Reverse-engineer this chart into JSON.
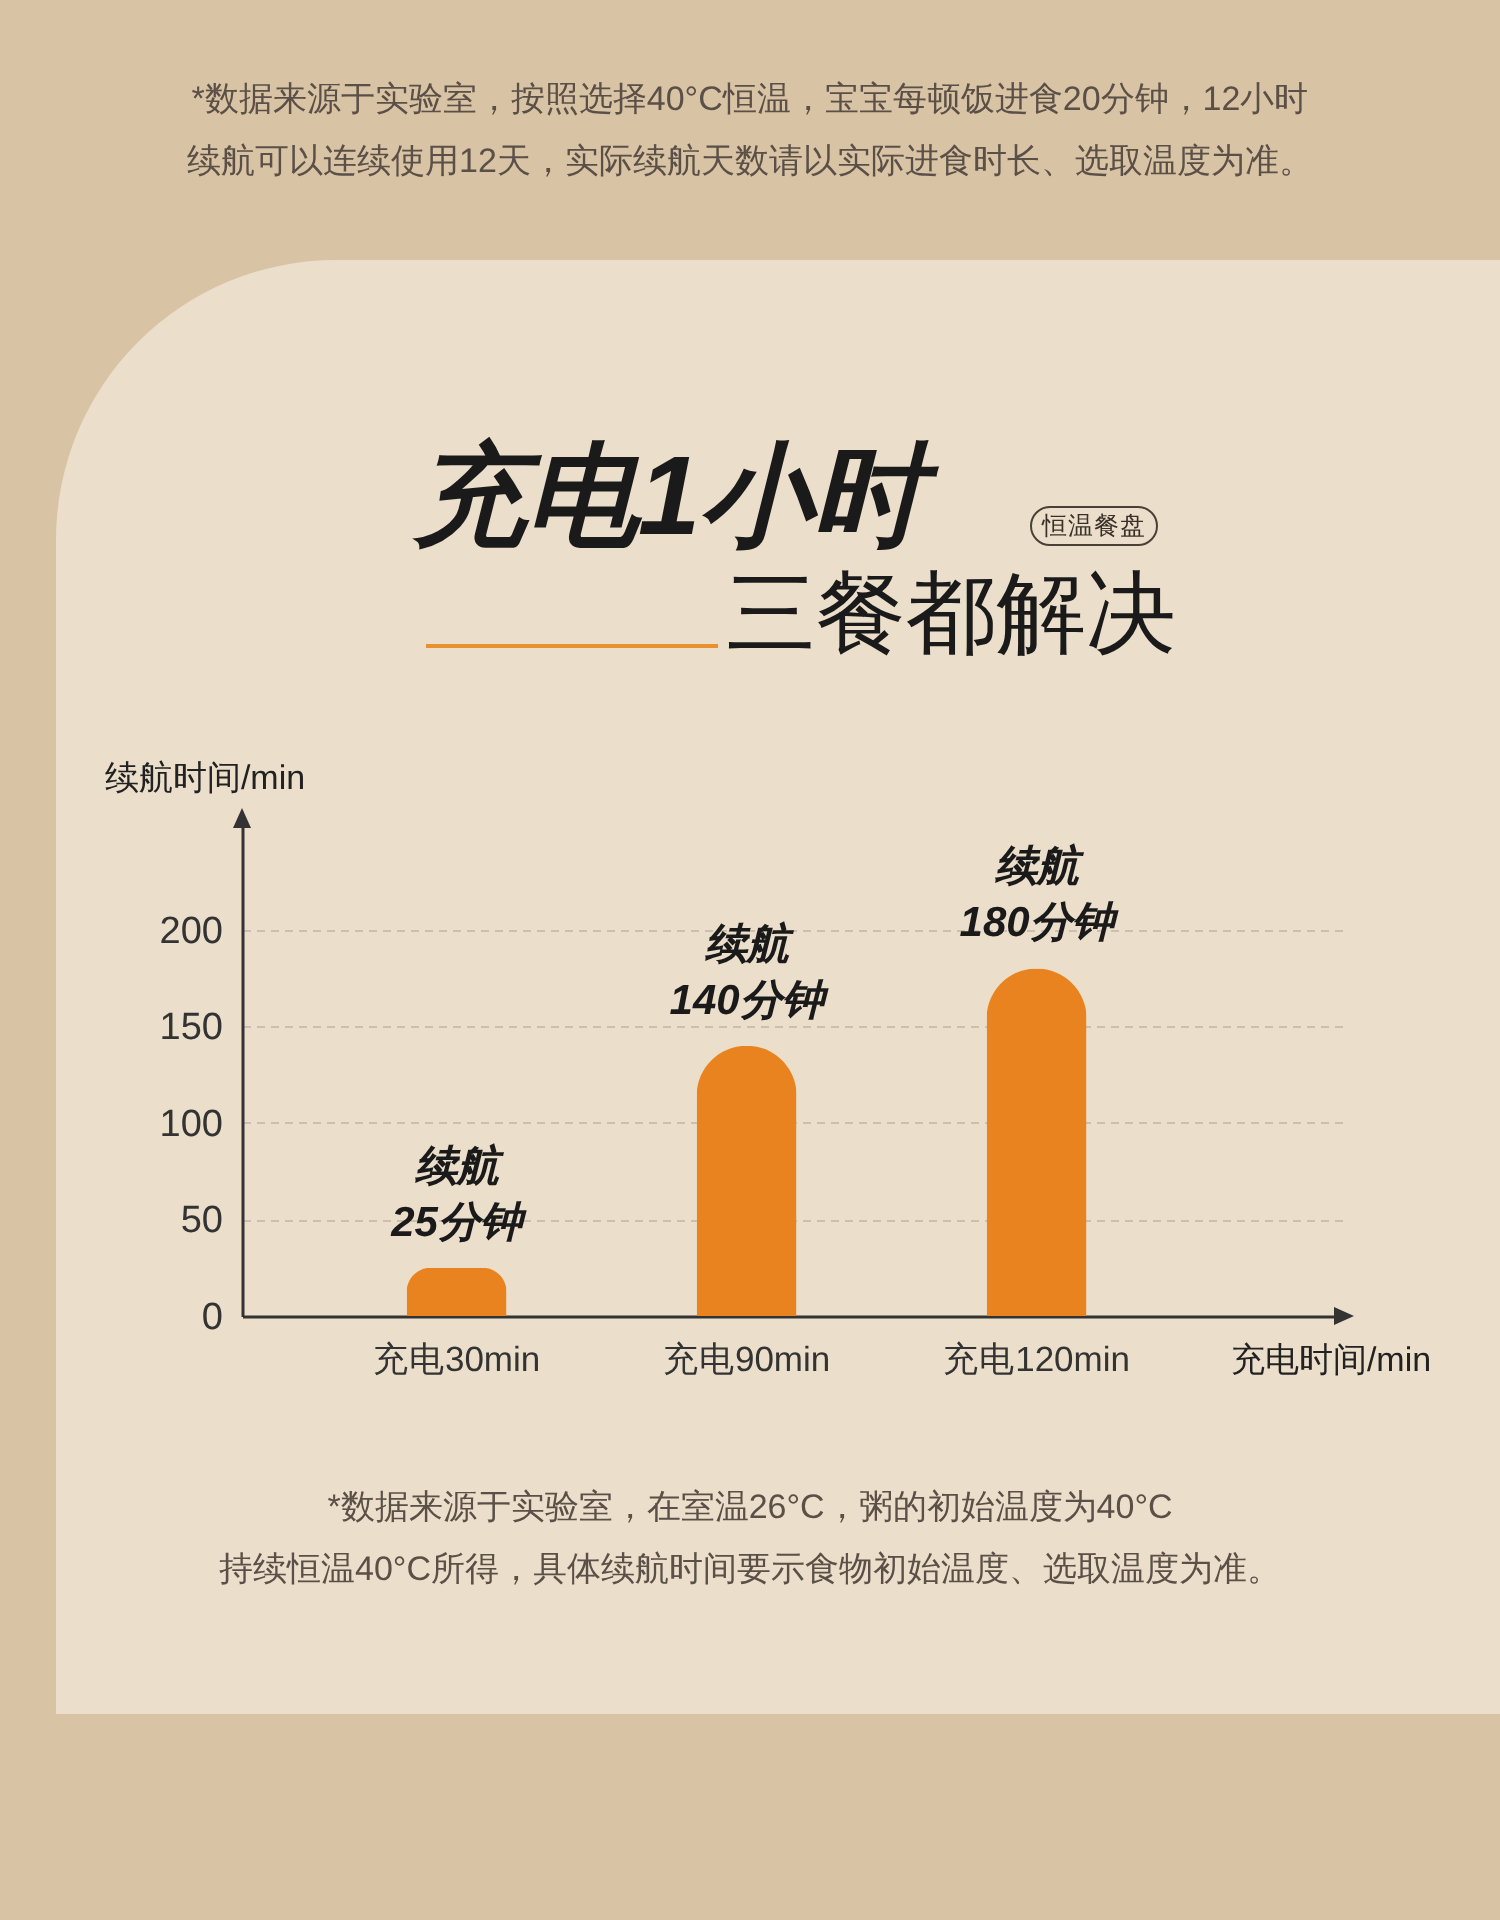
{
  "chart_data": {
    "type": "bar",
    "title": "充电1小时",
    "subtitle": "三餐都解决",
    "xlabel": "充电时间/min",
    "ylabel": "续航时间/min",
    "categories": [
      "充电30min",
      "充电90min",
      "充电120min"
    ],
    "values": [
      25,
      140,
      180
    ],
    "color": "#e9831f",
    "value_labels": [
      "续航\n25分钟",
      "续航\n140分钟",
      "续航\n180分钟"
    ],
    "ylim": [
      0,
      260
    ],
    "yticks": [
      0,
      50,
      100,
      150,
      200
    ],
    "grid": "y",
    "annotations": [
      "*数据来源于实验室，按照选择40°C恒温，宝宝每顿饭进食20分钟，12小时续航可以连续使用12天，实际续航天数请以实际进食时长、选取温度为准。",
      "恒温餐盘",
      "*数据来源于实验室，在室温26°C，粥的初始温度为40°C持续恒温40°C所得，具体续航时间要示食物初始温度、选取温度为准。"
    ]
  }
}
